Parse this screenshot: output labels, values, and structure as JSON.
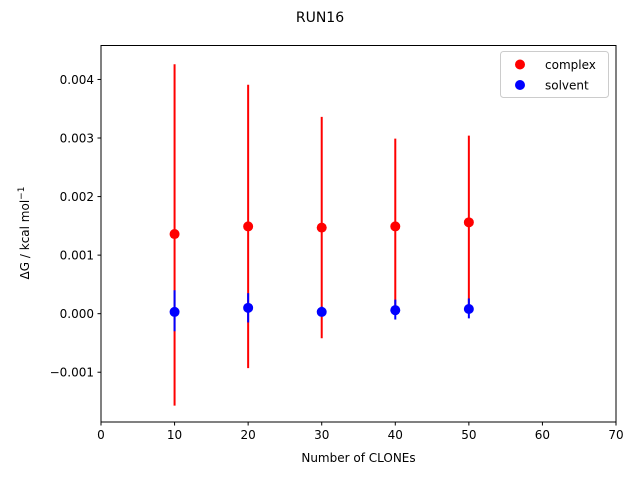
{
  "chart_data": {
    "type": "scatter",
    "title": "RUN16",
    "xlabel": "Number of CLONEs",
    "ylabel_main": "ΔG / kcal mol",
    "ylabel_sup": "−1",
    "xlim": [
      0,
      70
    ],
    "ylim": [
      -0.00185,
      0.00458
    ],
    "xticks": [
      0,
      10,
      20,
      30,
      40,
      50,
      60,
      70
    ],
    "xtick_labels": [
      "0",
      "10",
      "20",
      "30",
      "40",
      "50",
      "60",
      "70"
    ],
    "yticks": [
      -0.001,
      0.0,
      0.001,
      0.002,
      0.003,
      0.004
    ],
    "ytick_labels": [
      "−0.001",
      "0.000",
      "0.001",
      "0.002",
      "0.003",
      "0.004"
    ],
    "grid": false,
    "legend_position": "top-right",
    "series": [
      {
        "name": "complex",
        "color": "#ff0000",
        "x": [
          10,
          20,
          30,
          40,
          50
        ],
        "y": [
          0.00136,
          0.00149,
          0.00147,
          0.00149,
          0.00156
        ],
        "err_low": [
          -0.00157,
          -0.00093,
          -0.00042,
          0.0,
          0.0
        ],
        "err_high": [
          0.00426,
          0.00391,
          0.00336,
          0.00299,
          0.00304
        ]
      },
      {
        "name": "solvent",
        "color": "#0000ff",
        "x": [
          10,
          20,
          30,
          40,
          50
        ],
        "y": [
          3e-05,
          0.0001,
          3e-05,
          6e-05,
          8e-05
        ],
        "err_low": [
          -0.0003,
          -0.00015,
          -3e-05,
          -0.0001,
          -8e-05
        ],
        "err_high": [
          0.0004,
          0.00035,
          0.00012,
          0.00024,
          0.00026
        ]
      }
    ]
  }
}
